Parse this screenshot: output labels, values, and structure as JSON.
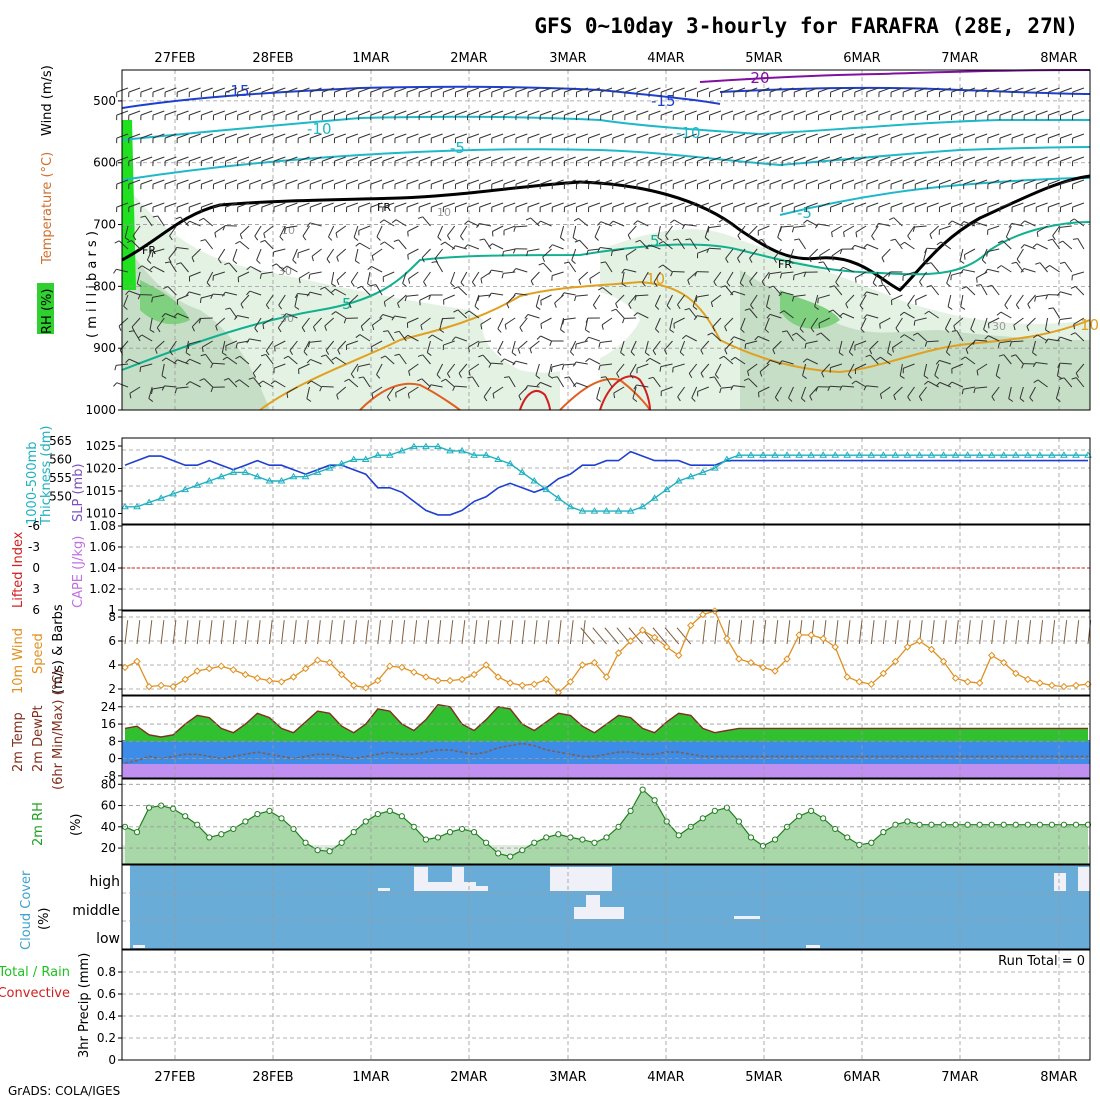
{
  "title": "GFS 0~10day 3-hourly for FARAFRA (28E, 27N)",
  "footer": "GrADS: COLA/IGES",
  "dates": [
    "27FEB",
    "28FEB",
    "1MAR",
    "2MAR",
    "3MAR",
    "4MAR",
    "5MAR",
    "6MAR",
    "7MAR",
    "8MAR"
  ],
  "colors": {
    "wind_blue": "#1f3fd0",
    "cyan": "#1fb8c8",
    "teal": "#10b090",
    "orange": "#e0a020",
    "red": "#d02020",
    "purple": "#8010a0",
    "rh_green": "#30d030",
    "cloud": "#6aacd8",
    "rh_fill": "#c8e0c8"
  },
  "chart_data": [
    {
      "type": "heatmap",
      "name": "upper-air",
      "ylabel_parts": [
        "RH (%)",
        "Temperature (°C)",
        "Wind (m/s)"
      ],
      "yaxis_label": "( m i l l i b a r s )",
      "yticks": [
        "500",
        "600",
        "700",
        "800",
        "900",
        "1000"
      ],
      "ylim": [
        450,
        1000
      ],
      "contour_labels": {
        "neg15": "-15",
        "neg15b": "-15",
        "neg10": "-10",
        "neg10b": "-10",
        "neg5": "-5",
        "neg5b": "-5",
        "neg20": "-20",
        "pos5": "5",
        "pos5b": "5",
        "pos10": "10",
        "pos10b": "10",
        "fr1": "FR",
        "fr2": "FR",
        "fr3": "FR",
        "rh30": "30",
        "rh10": "10",
        "rh10b": "10",
        "rh30b": "30",
        "rh30c": "30"
      }
    },
    {
      "type": "line",
      "name": "thickness-slp",
      "ylabel_left": [
        "1000-500mb",
        "Thickness (dm)"
      ],
      "ylabel_right": "SLP (mb)",
      "yticks_left": [
        "565",
        "560",
        "555",
        "550"
      ],
      "yticks_right": [
        "1025",
        "1020",
        "1015",
        "1010"
      ],
      "series": [
        {
          "name": "SLP (mb)",
          "ylim": [
            1008,
            1027
          ],
          "values": [
            1021,
            1022,
            1023,
            1023,
            1022,
            1021,
            1021,
            1022,
            1021,
            1020,
            1021,
            1022,
            1021,
            1021,
            1020,
            1019,
            1020,
            1021,
            1021,
            1020,
            1019,
            1016,
            1016,
            1015,
            1013,
            1011,
            1010,
            1010,
            1011,
            1013,
            1014,
            1016,
            1017,
            1016,
            1015,
            1016,
            1018,
            1019,
            1021,
            1021,
            1022,
            1022,
            1024,
            1023,
            1022,
            1022,
            1022,
            1021,
            1021,
            1021,
            1022,
            1022,
            1022,
            1022,
            1022,
            1022,
            1022,
            1022,
            1022,
            1022,
            1022,
            1022,
            1022,
            1022,
            1022,
            1022,
            1022,
            1022,
            1022,
            1022,
            1022,
            1022,
            1022,
            1022,
            1022,
            1022,
            1022,
            1022,
            1022,
            1022,
            1022
          ]
        },
        {
          "name": "Thickness (dm)",
          "ylim": [
            546,
            566
          ],
          "values": [
            550,
            550,
            551,
            552,
            553,
            554,
            555,
            556,
            557,
            558,
            558,
            557,
            556,
            556,
            557,
            557,
            558,
            559,
            560,
            561,
            561,
            562,
            562,
            563,
            564,
            564,
            564,
            563,
            563,
            562,
            562,
            561,
            560,
            558,
            556,
            554,
            552,
            550,
            549,
            549,
            549,
            549,
            549,
            550,
            552,
            554,
            556,
            557,
            558,
            559,
            561,
            562,
            562,
            562,
            562,
            562,
            562,
            562,
            562,
            562,
            562,
            562,
            562,
            562,
            562,
            562,
            562,
            562,
            562,
            562,
            562,
            562,
            562,
            562,
            562,
            562,
            562,
            562,
            562,
            562,
            562
          ]
        }
      ]
    },
    {
      "type": "line",
      "name": "lifted-index-cape",
      "ylabel_left": "Lifted Index",
      "ylabel_right": "CAPE (J/kg)",
      "yticks_left": [
        "-6",
        "-3",
        "0",
        "3",
        "6"
      ],
      "yticks_right": [
        "1.08",
        "1.06",
        "1.04",
        "1.02",
        "1"
      ],
      "series": [
        {
          "name": "Lifted Index",
          "values": [
            0
          ]
        }
      ]
    },
    {
      "type": "line",
      "name": "10m-wind",
      "ylabel": [
        "10m Wind",
        "Speed",
        "(m/s) & Barbs"
      ],
      "yticks": [
        "8",
        "6",
        "4",
        "2"
      ],
      "ylim": [
        1.5,
        8.5
      ],
      "series": [
        {
          "name": "Speed (m/s)",
          "values": [
            3.8,
            4.3,
            2.2,
            2.3,
            2.2,
            2.8,
            3.5,
            3.7,
            3.9,
            3.6,
            3.2,
            2.9,
            2.7,
            2.6,
            3.0,
            3.7,
            4.4,
            4.2,
            3.2,
            2.3,
            2.1,
            2.7,
            3.9,
            3.8,
            3.4,
            3.0,
            2.7,
            2.7,
            2.8,
            3.2,
            4.0,
            3.0,
            2.5,
            2.3,
            2.4,
            2.8,
            1.7,
            2.6,
            4.0,
            4.2,
            3.0,
            5.0,
            6.0,
            6.9,
            6.3,
            5.5,
            4.8,
            7.3,
            8.2,
            8.5,
            6.2,
            4.5,
            4.2,
            3.8,
            3.5,
            4.5,
            6.5,
            6.5,
            6.2,
            5.5,
            3.0,
            2.6,
            2.4,
            3.3,
            4.3,
            5.5,
            6.0,
            5.3,
            4.3,
            2.9,
            2.6,
            2.5,
            4.8,
            4.2,
            3.3,
            2.8,
            2.5,
            2.3,
            2.2,
            2.3,
            2.4
          ]
        }
      ]
    },
    {
      "type": "area",
      "name": "2m-temp",
      "ylabel": [
        "2m Temp",
        "2m DewPt",
        "(6hr Min/Max) (°C)"
      ],
      "yticks": [
        "24",
        "16",
        "8",
        "0",
        "-8"
      ],
      "ylim": [
        -9,
        29
      ],
      "series": [
        {
          "name": "2m Temp",
          "values": [
            14,
            15,
            11,
            10,
            11,
            16,
            20,
            19,
            14,
            12,
            16,
            21,
            19,
            14,
            12,
            17,
            22,
            21,
            15,
            12,
            16,
            23,
            22,
            16,
            13,
            18,
            25,
            24,
            16,
            13,
            18,
            24,
            23,
            16,
            13,
            17,
            21,
            20,
            15,
            12,
            16,
            20,
            19,
            14,
            12,
            17,
            21,
            20,
            14,
            12,
            13,
            14,
            14,
            14,
            14,
            14,
            14,
            14,
            14,
            14,
            14,
            14,
            14,
            14,
            14,
            14,
            14,
            14,
            14,
            14,
            14,
            14,
            14,
            14,
            14,
            14,
            14,
            14,
            14,
            14,
            14
          ]
        },
        {
          "name": "2m DewPt",
          "values": [
            -2,
            -1,
            1,
            0,
            1,
            2,
            2,
            1,
            0,
            1,
            2,
            3,
            2,
            1,
            0,
            1,
            2,
            2,
            1,
            0,
            1,
            2,
            3,
            2,
            2,
            3,
            4,
            4,
            3,
            2,
            3,
            5,
            6,
            7,
            6,
            4,
            3,
            2,
            1,
            1,
            2,
            3,
            3,
            2,
            2,
            3,
            3,
            2,
            1,
            1,
            1,
            1,
            1,
            1,
            1,
            1,
            1,
            1,
            1,
            1,
            1,
            1,
            1,
            1,
            1,
            1,
            1,
            1,
            1,
            1,
            1,
            1,
            1,
            1,
            1,
            1,
            1,
            1,
            1,
            1,
            1
          ]
        }
      ]
    },
    {
      "type": "area",
      "name": "2m-rh",
      "ylabel": [
        "2m RH",
        "(%)"
      ],
      "yticks": [
        "80",
        "60",
        "40",
        "20"
      ],
      "ylim": [
        5,
        85
      ],
      "series": [
        {
          "name": "2m RH",
          "values": [
            40,
            35,
            58,
            60,
            57,
            50,
            42,
            30,
            33,
            38,
            45,
            52,
            55,
            48,
            38,
            25,
            18,
            17,
            25,
            35,
            45,
            52,
            55,
            50,
            40,
            28,
            30,
            35,
            38,
            35,
            25,
            15,
            12,
            18,
            25,
            30,
            33,
            30,
            28,
            25,
            30,
            40,
            55,
            75,
            65,
            45,
            32,
            40,
            48,
            55,
            58,
            45,
            30,
            22,
            28,
            40,
            50,
            55,
            48,
            38,
            30,
            23,
            25,
            35,
            42,
            45,
            42,
            42,
            42,
            42,
            42,
            42,
            42,
            42,
            42,
            42,
            42,
            42,
            42,
            42,
            42
          ]
        }
      ]
    },
    {
      "type": "bar",
      "name": "cloud-cover",
      "ylabel": [
        "Cloud Cover",
        "(%)"
      ],
      "levels": [
        "high",
        "middle",
        "low"
      ]
    },
    {
      "type": "bar",
      "name": "precip",
      "ylabel": [
        "3hr Precip (mm)"
      ],
      "ylabel_left": [
        "Total / Rain",
        "Convective"
      ],
      "yticks": [
        "0.8",
        "0.6",
        "0.4",
        "0.2",
        "0"
      ],
      "ylim": [
        0,
        1
      ],
      "annotation": "Run Total = 0",
      "values": [
        0
      ]
    }
  ]
}
